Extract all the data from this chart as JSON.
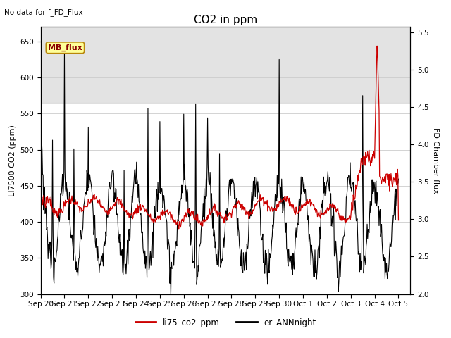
{
  "title": "CO2 in ppm",
  "ylabel_left": "LI7500 CO2 (ppm)",
  "ylabel_right": "FD Chamber flux",
  "no_data_text": "No data for f_FD_Flux",
  "mb_flux_label": "MB_flux",
  "ylim_left": [
    300,
    670
  ],
  "ylim_right": [
    2.0,
    5.567
  ],
  "yticks_left": [
    300,
    350,
    400,
    450,
    500,
    550,
    600,
    650
  ],
  "yticks_right": [
    2.0,
    2.5,
    3.0,
    3.5,
    4.0,
    4.5,
    5.0,
    5.5
  ],
  "shaded_band": [
    565,
    670
  ],
  "shaded_color": "#d8d8d8",
  "line1_color": "#cc0000",
  "line2_color": "#000000",
  "line1_label": "li75_co2_ppm",
  "line2_label": "er_ANNnight",
  "background_color": "#ffffff",
  "grid_color": "#cccccc",
  "title_fontsize": 11,
  "axis_fontsize": 8,
  "tick_fontsize": 7.5
}
